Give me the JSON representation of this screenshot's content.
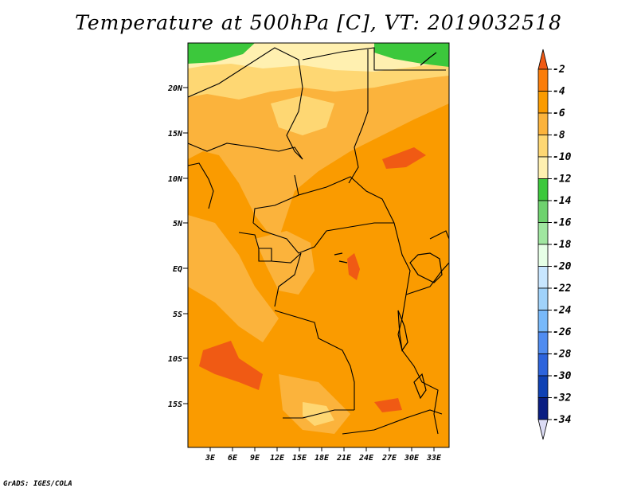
{
  "title": "Temperature at 500hPa [C], VT: 2019032518",
  "credit": "GrADS: IGES/COLA",
  "map": {
    "lat_labels": [
      "20N",
      "15N",
      "10N",
      "5N",
      "EQ",
      "5S",
      "10S",
      "15S"
    ],
    "lon_labels": [
      "3E",
      "6E",
      "9E",
      "12E",
      "15E",
      "18E",
      "21E",
      "24E",
      "27E",
      "30E",
      "33E"
    ]
  },
  "colorbar": {
    "labels": [
      "-2",
      "-4",
      "-6",
      "-8",
      "-10",
      "-12",
      "-14",
      "-16",
      "-18",
      "-20",
      "-22",
      "-24",
      "-26",
      "-28",
      "-30",
      "-32",
      "-34"
    ],
    "colors": [
      "#f05a14",
      "#fa7d0a",
      "#fa9b00",
      "#fbb33c",
      "#fed773",
      "#fff0b0",
      "#3cc83c",
      "#6ed26e",
      "#a0e6a0",
      "#e6ffe6",
      "#c8e6ff",
      "#a0d2fa",
      "#78b9fa",
      "#508cf0",
      "#2d64dc",
      "#0f41b4",
      "#0a1e82",
      "#dcdcf5"
    ]
  }
}
